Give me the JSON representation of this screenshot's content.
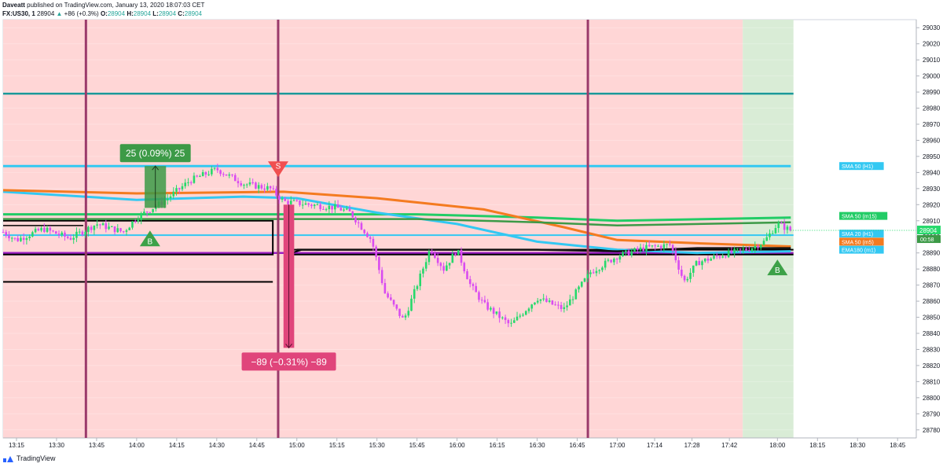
{
  "header": {
    "author": "Daveatt",
    "published_text": "published on TradingView.com, January 13, 2020 18:07:03 CET",
    "symbol": "FX:US30, 1",
    "last": "28904",
    "change_arrow": "▲",
    "change": "+86 (+0.3%)",
    "o_label": "O:",
    "o_val": "28904",
    "h_label": "H:",
    "h_val": "28904",
    "l_label": "L:",
    "l_val": "28904",
    "c_label": "C:",
    "c_val": "28904"
  },
  "footer": {
    "brand": "TradingView"
  },
  "colors": {
    "bg_red": "#ffd6d6",
    "bg_green": "#d9ecd6",
    "candle_up": "#26d96b",
    "candle_down": "#d94cf0",
    "vline": "#9b3a6b",
    "teal_line": "#1a9999",
    "purple_line": "#9b1fc4",
    "sma50_h1": "#33c8f2",
    "sma20_h1": "#33c8f2",
    "sma50_m15": "#22cc66",
    "sma50_m5": "#f47b20",
    "ema180": "#111111",
    "long_box": "#3c9a47",
    "short_box": "#e0457b"
  },
  "chart_data": {
    "type": "candlestick",
    "ylim": [
      28775,
      29035
    ],
    "y_ticks": [
      29030,
      29020,
      29010,
      29000,
      28990,
      28980,
      28970,
      28960,
      28950,
      28940,
      28930,
      28920,
      28910,
      28900,
      28890,
      28880,
      28870,
      28860,
      28850,
      28840,
      28830,
      28820,
      28810,
      28800,
      28790,
      28780
    ],
    "x_ticks": [
      "13:15",
      "13:30",
      "13:45",
      "14:00",
      "14:15",
      "14:30",
      "14:45",
      "15:00",
      "15:15",
      "15:30",
      "15:45",
      "16:00",
      "16:15",
      "16:30",
      "16:45",
      "17:00",
      "17:14",
      "17:28",
      "17:42",
      "18:00",
      "18:15",
      "18:30",
      "18:45"
    ],
    "price_path": [
      [
        "13:10",
        28903
      ],
      [
        "13:15",
        28898
      ],
      [
        "13:25",
        28905
      ],
      [
        "13:35",
        28899
      ],
      [
        "13:45",
        28908
      ],
      [
        "13:55",
        28903
      ],
      [
        "14:00",
        28912
      ],
      [
        "14:10",
        28922
      ],
      [
        "14:20",
        28935
      ],
      [
        "14:30",
        28942
      ],
      [
        "14:40",
        28933
      ],
      [
        "14:50",
        28930
      ],
      [
        "14:55",
        28922
      ],
      [
        "15:05",
        28920
      ],
      [
        "15:15",
        28918
      ],
      [
        "15:20",
        28915
      ],
      [
        "15:28",
        28898
      ],
      [
        "15:33",
        28865
      ],
      [
        "15:40",
        28848
      ],
      [
        "15:45",
        28870
      ],
      [
        "15:50",
        28893
      ],
      [
        "15:55",
        28880
      ],
      [
        "16:00",
        28892
      ],
      [
        "16:05",
        28870
      ],
      [
        "16:10",
        28858
      ],
      [
        "16:20",
        28845
      ],
      [
        "16:30",
        28862
      ],
      [
        "16:40",
        28855
      ],
      [
        "16:50",
        28878
      ],
      [
        "17:00",
        28888
      ],
      [
        "17:10",
        28893
      ],
      [
        "17:20",
        28895
      ],
      [
        "17:25",
        28872
      ],
      [
        "17:30",
        28884
      ],
      [
        "17:40",
        28889
      ],
      [
        "17:50",
        28893
      ],
      [
        "17:55",
        28897
      ],
      [
        "18:00",
        28908
      ],
      [
        "18:05",
        28904
      ]
    ],
    "indicators": [
      {
        "name": "SMA 50 (H1)",
        "color_key": "sma50_h1",
        "points": [
          [
            "13:10",
            28944
          ],
          [
            "18:05",
            28944
          ]
        ]
      },
      {
        "name": "SMA 50 (m15)",
        "color_key": "sma50_m15",
        "points": [
          [
            "13:10",
            28914
          ],
          [
            "15:45",
            28914
          ],
          [
            "16:30",
            28912
          ],
          [
            "17:00",
            28910
          ],
          [
            "18:05",
            28912
          ]
        ]
      },
      {
        "name": "SMA 20 (H1)",
        "color_key": "sma20_h1",
        "points": [
          [
            "13:10",
            28928
          ],
          [
            "14:00",
            28923
          ],
          [
            "14:40",
            28925
          ],
          [
            "15:00",
            28924
          ],
          [
            "15:30",
            28915
          ],
          [
            "16:00",
            28908
          ],
          [
            "16:30",
            28897
          ],
          [
            "17:00",
            28892
          ],
          [
            "17:30",
            28890
          ],
          [
            "18:05",
            28891
          ]
        ]
      },
      {
        "name": "SMA 50 (m5)",
        "color_key": "sma50_m5",
        "points": [
          [
            "13:10",
            28929
          ],
          [
            "14:00",
            28927
          ],
          [
            "14:55",
            28928
          ],
          [
            "15:30",
            28924
          ],
          [
            "16:10",
            28917
          ],
          [
            "16:40",
            28906
          ],
          [
            "17:00",
            28898
          ],
          [
            "17:30",
            28896
          ],
          [
            "18:05",
            28894
          ]
        ]
      },
      {
        "name": "EMA180 (m1)",
        "color_key": "ema180",
        "points": [
          [
            "15:00",
            28892
          ],
          [
            "16:30",
            28892
          ],
          [
            "17:00",
            28891
          ],
          [
            "17:30",
            28893
          ],
          [
            "18:05",
            28893
          ]
        ]
      }
    ],
    "hlines": [
      {
        "value": 28989,
        "color_key": "teal_line"
      },
      {
        "value": 28890,
        "color_key": "purple_line"
      },
      {
        "value": 28901,
        "color_key": "sma50_h1"
      }
    ],
    "vlines": [
      "13:41",
      "14:53",
      "16:49"
    ],
    "sessions": [
      {
        "from": "13:10",
        "to": "17:47",
        "color_key": "bg_red"
      },
      {
        "from": "17:47",
        "to": "18:06",
        "color_key": "bg_green"
      }
    ],
    "signals": [
      {
        "type": "buy",
        "label": "B",
        "time": "14:05",
        "price": 28899
      },
      {
        "type": "sell",
        "label": "S",
        "time": "14:53",
        "price": 28942
      },
      {
        "type": "buy",
        "label": "B",
        "time": "18:00",
        "price": 28881
      }
    ],
    "measure_long": {
      "label": "25 (0.09%) 25",
      "from_time": "14:03",
      "to_time": "14:11",
      "low": 28918,
      "high": 28944
    },
    "measure_short": {
      "label": "−89 (−0.31%) −89",
      "from_time": "14:55",
      "to_time": "14:59",
      "high": 28920,
      "low": 28831
    },
    "current_price": {
      "value": 28904,
      "label": "28904",
      "countdown": "00:58"
    },
    "right_labels": [
      {
        "text": "SMA 50 (H1)",
        "price": 28944,
        "color_key": "sma50_h1"
      },
      {
        "text": "SMA 50 (m15)",
        "price": 28913,
        "color_key": "sma50_m15"
      },
      {
        "text": "SMA 20 (H1)",
        "price": 28902,
        "color_key": "sma50_h1"
      },
      {
        "text": "SMA 50 (m5)",
        "price": 28897,
        "color_key": "sma50_m5"
      },
      {
        "text": "EMA180 (m1)",
        "price": 28892,
        "color_key": "sma50_h1"
      }
    ]
  }
}
